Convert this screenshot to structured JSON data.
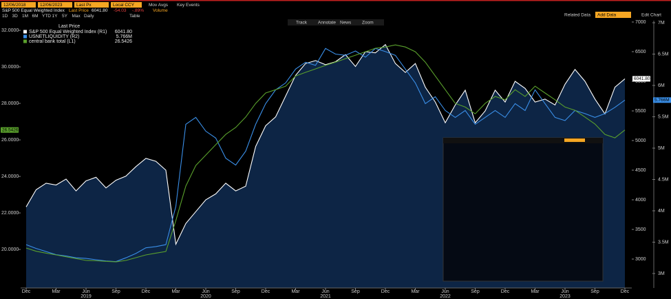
{
  "header": {
    "start_date": "12/06/2018",
    "end_date": "12/06/2023",
    "field": "Last Px",
    "currency": "Local CCY",
    "mov_avgs": "Mov Avgs",
    "key_events": "Key Events",
    "security": "S&P 500 Equal Weighted Index",
    "last_price_label": "Last Price",
    "last_price": "6041.80",
    "change": "-54.03",
    "change_pct": "-.89%",
    "volume": "Volume",
    "periods": [
      "1D",
      "3D",
      "1M",
      "6M",
      "YTD",
      "1Y",
      "5Y",
      "Max"
    ],
    "frequency": "Daily",
    "table": "Table",
    "related": "Related Data",
    "add": "Add Data",
    "edit": "Edit Chart",
    "tools": [
      "Track",
      "Annotate",
      "News",
      "Zoom"
    ]
  },
  "chart_data": {
    "type": "line",
    "legend_title": "Last Price",
    "categories": [
      "Dec",
      null,
      null,
      "Mar",
      null,
      null,
      "Jun",
      null,
      null,
      "Sep",
      null,
      null,
      "Dec",
      null,
      null,
      "Mar",
      null,
      null,
      "Jun",
      null,
      null,
      "Sep",
      null,
      null,
      "Dec",
      null,
      null,
      "Mar",
      null,
      null,
      "Jun",
      null,
      null,
      "Sep",
      null,
      null,
      "Dec",
      null,
      null,
      "Mar",
      null,
      null,
      "Jun",
      null,
      null,
      "Sep",
      null,
      null,
      "Dec",
      null,
      null,
      "Mar",
      null,
      null,
      "Jun",
      null,
      null,
      "Sep",
      null,
      null,
      "Dec"
    ],
    "years": [
      "2019",
      "2020",
      "2021",
      "2022",
      "2023"
    ],
    "ylim": [
      17.89,
      32.53
    ],
    "yticks": [
      {
        "value": 20,
        "label": "20.0000"
      },
      {
        "value": 22,
        "label": "22.0000"
      },
      {
        "value": 24,
        "label": "24.0000"
      },
      {
        "value": 26,
        "label": "26.0000"
      },
      {
        "value": 28,
        "label": "28.0000"
      },
      {
        "value": 30,
        "label": "30.0000"
      },
      {
        "value": 32,
        "label": "32.0000"
      }
    ],
    "y2lim": [
      2512,
      7023
    ],
    "y2ticks": [
      3000,
      3500,
      4000,
      4500,
      5000,
      5500,
      6000,
      6500,
      7000
    ],
    "y3lim": [
      2.769,
      7.033
    ],
    "y3ticks": [
      {
        "value": 3,
        "label": "3M"
      },
      {
        "value": 3.5,
        "label": "3.5M"
      },
      {
        "value": 4,
        "label": "4M"
      },
      {
        "value": 4.5,
        "label": "4.5M"
      },
      {
        "value": 5,
        "label": "5M"
      },
      {
        "value": 5.5,
        "label": "5.5M"
      },
      {
        "value": 6,
        "label": "6M"
      },
      {
        "value": 6.5,
        "label": "6.5M"
      },
      {
        "value": 7,
        "label": "7M"
      }
    ],
    "series": [
      {
        "name": "S&P 500 Equal Weighted Index (R1)",
        "color": "#ffffff",
        "axis": "y2",
        "area": true,
        "last_value_label": "6041.80",
        "values": [
          3880,
          4170,
          4280,
          4250,
          4350,
          4150,
          4320,
          4380,
          4200,
          4330,
          4400,
          4560,
          4700,
          4650,
          4500,
          3250,
          3600,
          3800,
          4000,
          4100,
          4280,
          4150,
          4230,
          4900,
          5250,
          5400,
          5750,
          6100,
          6300,
          6350,
          6280,
          6330,
          6450,
          6250,
          6500,
          6480,
          6620,
          6300,
          6150,
          6300,
          5900,
          5650,
          5300,
          5600,
          5850,
          5300,
          5500,
          5850,
          5650,
          6000,
          5880,
          5650,
          5700,
          5600,
          5950,
          6200,
          6000,
          5700,
          5450,
          5900,
          6041.8
        ]
      },
      {
        "name": "USNETLIQUIDITY (R2)",
        "color": "#3a8fe8",
        "axis": "y3",
        "last_value_label": "5.766M",
        "values": [
          3.46,
          3.4,
          3.35,
          3.3,
          3.28,
          3.25,
          3.24,
          3.22,
          3.2,
          3.19,
          3.25,
          3.32,
          3.41,
          3.43,
          3.46,
          4.07,
          5.38,
          5.49,
          5.27,
          5.16,
          4.84,
          4.73,
          4.95,
          5.38,
          5.71,
          5.93,
          6.04,
          6.26,
          6.37,
          6.32,
          6.59,
          6.5,
          6.48,
          6.55,
          6.45,
          6.59,
          6.54,
          6.48,
          6.26,
          6.04,
          5.71,
          5.82,
          5.6,
          5.49,
          5.6,
          5.38,
          5.49,
          5.6,
          5.49,
          5.71,
          5.6,
          5.93,
          5.71,
          5.49,
          5.44,
          5.6,
          5.55,
          5.49,
          5.55,
          5.65,
          5.766
        ]
      },
      {
        "name": "central bank total (L1)",
        "color": "#5aa02c",
        "axis": "y",
        "last_value_label": "26.5426",
        "values": [
          20.08,
          19.9,
          19.8,
          19.7,
          19.6,
          19.5,
          19.4,
          19.38,
          19.35,
          19.32,
          19.4,
          19.55,
          19.7,
          19.8,
          19.89,
          21.58,
          23.47,
          24.6,
          25.17,
          25.74,
          26.3,
          26.68,
          27.25,
          28.0,
          28.57,
          28.75,
          28.94,
          29.5,
          29.7,
          29.89,
          30.08,
          30.26,
          30.45,
          30.64,
          30.83,
          31.02,
          31.09,
          31.2,
          31.09,
          30.83,
          30.26,
          29.5,
          28.75,
          28.0,
          27.8,
          27.43,
          28.0,
          28.38,
          28.2,
          28.75,
          28.38,
          28.94,
          28.57,
          28.2,
          27.8,
          27.62,
          27.25,
          26.87,
          26.3,
          26.11,
          26.5426
        ]
      }
    ]
  }
}
